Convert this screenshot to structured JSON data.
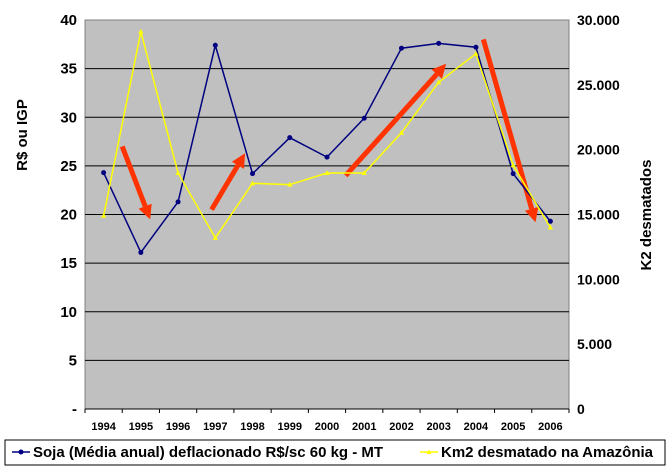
{
  "chart_data": {
    "type": "line",
    "categories": [
      "1994",
      "1995",
      "1996",
      "1997",
      "1998",
      "1999",
      "2000",
      "2001",
      "2002",
      "2003",
      "2004",
      "2005",
      "2006"
    ],
    "ylabel": "R$ ou IGP",
    "y2label": "K2 desmatados",
    "ylim": [
      0,
      40
    ],
    "y2lim": [
      0,
      30000
    ],
    "y_ticks": [
      "-",
      "5",
      "10",
      "15",
      "20",
      "25",
      "30",
      "35",
      "40"
    ],
    "y2_ticks": [
      "0",
      "5.000",
      "10.000",
      "15.000",
      "20.000",
      "25.000",
      "30.000"
    ],
    "grid": true,
    "legend_position": "bottom",
    "series": [
      {
        "name": "Soja (Média anual) deflacionado R$/sc 60 kg - MT",
        "axis": "left",
        "color": "#000080",
        "values": [
          24.3,
          16.1,
          21.3,
          37.4,
          24.2,
          27.9,
          25.9,
          29.9,
          37.1,
          37.6,
          37.2,
          24.2,
          19.3
        ]
      },
      {
        "name": "Km2 desmatado na Amazônia",
        "axis": "right",
        "color": "#ffff00",
        "values": [
          14900,
          29100,
          18200,
          13200,
          17400,
          17300,
          18200,
          18200,
          21300,
          25200,
          27400,
          18800,
          14000
        ]
      }
    ],
    "annotations": [
      {
        "type": "arrow",
        "color": "#ff3300",
        "from": [
          "1994.5",
          27
        ],
        "to": [
          "1995.25",
          19.5
        ]
      },
      {
        "type": "arrow",
        "color": "#ff3300",
        "from": [
          "1996.9",
          20.5
        ],
        "to": [
          "1997.8",
          26.3
        ]
      },
      {
        "type": "arrow",
        "color": "#ff3300",
        "from": [
          "2000.5",
          24
        ],
        "to": [
          "2003.2",
          35.5
        ]
      },
      {
        "type": "arrow",
        "color": "#ff3300",
        "from": [
          "2004.2",
          38
        ],
        "to": [
          "2005.6",
          19.2
        ]
      }
    ]
  },
  "colors": {
    "plot_background": "#c0c0c0",
    "gridline": "#000000",
    "arrow": "#ff3300"
  }
}
